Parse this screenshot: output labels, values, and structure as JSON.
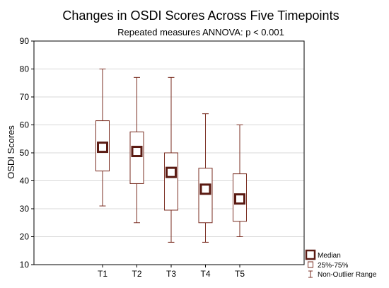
{
  "chart_data": {
    "type": "boxplot",
    "title": "Changes in OSDI Scores Across Five Timepoints",
    "subtitle": "Repeated measures ANNOVA: p < 0.001",
    "xlabel": "",
    "ylabel": "OSDI Scores",
    "ylim": [
      10,
      90
    ],
    "yticks": [
      10,
      20,
      30,
      40,
      50,
      60,
      70,
      80,
      90
    ],
    "grid": true,
    "categories": [
      "T1",
      "T2",
      "T3",
      "T4",
      "T5"
    ],
    "boxes": [
      {
        "category": "T1",
        "min": 31,
        "q1": 43.5,
        "median": 52,
        "q3": 61.5,
        "max": 80
      },
      {
        "category": "T2",
        "min": 25,
        "q1": 39,
        "median": 50.5,
        "q3": 57.5,
        "max": 77
      },
      {
        "category": "T3",
        "min": 18,
        "q1": 29.5,
        "median": 43,
        "q3": 50,
        "max": 77
      },
      {
        "category": "T4",
        "min": 18,
        "q1": 25,
        "median": 37,
        "q3": 44.5,
        "max": 64
      },
      {
        "category": "T5",
        "min": 20,
        "q1": 25.5,
        "median": 33.5,
        "q3": 42.5,
        "max": 60
      }
    ],
    "legend": {
      "position": "bottom-right",
      "median": "Median",
      "box": "25%-75%",
      "whisker": "Non-Outlier Range"
    },
    "colors": {
      "box": "#7a2e22",
      "median": "#5a1a12",
      "grid": "#d8d8d8",
      "frame": "#000000"
    }
  }
}
